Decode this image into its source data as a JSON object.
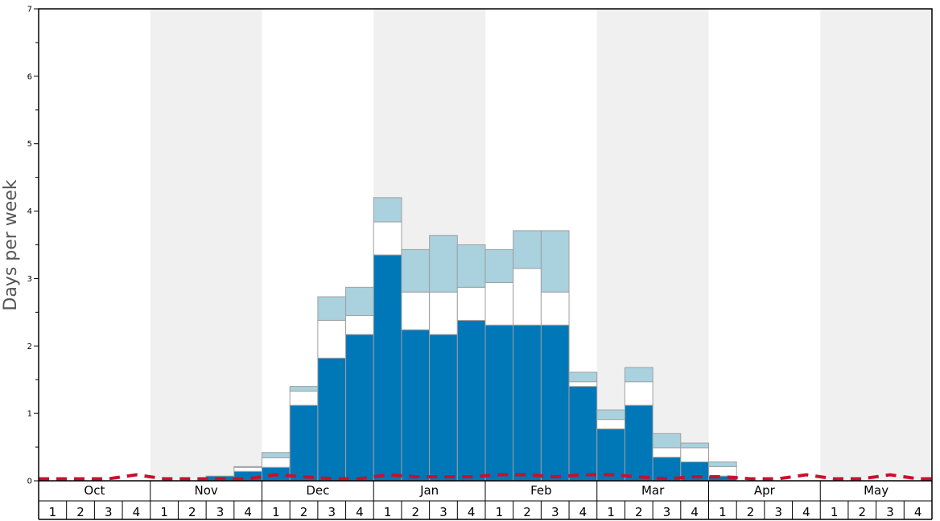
{
  "chart_data": {
    "type": "bar",
    "stacked": true,
    "ylabel": "Days per week",
    "ylim": [
      0,
      7
    ],
    "y_ticks": [
      "0",
      "1",
      "2",
      "3",
      "4",
      "5",
      "6",
      "7"
    ],
    "months": [
      "Oct",
      "Nov",
      "Dec",
      "Jan",
      "Feb",
      "Mar",
      "Apr",
      "May"
    ],
    "week_labels": [
      "1",
      "2",
      "3",
      "4"
    ],
    "weeks_per_month": 4,
    "series": [
      {
        "color": "#0077b6",
        "values": [
          0,
          0,
          0,
          0,
          0,
          0,
          0.07,
          0.14,
          0.2,
          1.12,
          1.82,
          2.17,
          3.35,
          2.24,
          2.17,
          2.38,
          2.31,
          2.31,
          2.31,
          1.4,
          0.77,
          1.12,
          0.35,
          0.28,
          0.07,
          0,
          0,
          0,
          0,
          0,
          0,
          0
        ]
      },
      {
        "color": "#ffffff",
        "values": [
          0,
          0,
          0,
          0,
          0,
          0,
          0,
          0.06,
          0.14,
          0.21,
          0.56,
          0.28,
          0.49,
          0.56,
          0.63,
          0.49,
          0.63,
          0.84,
          0.49,
          0.07,
          0.14,
          0.35,
          0.14,
          0.21,
          0.14,
          0,
          0,
          0,
          0,
          0,
          0,
          0
        ]
      },
      {
        "color": "#a9d1de",
        "values": [
          0,
          0,
          0,
          0,
          0,
          0,
          0,
          0.01,
          0.08,
          0.07,
          0.35,
          0.42,
          0.36,
          0.63,
          0.84,
          0.63,
          0.49,
          0.56,
          0.91,
          0.14,
          0.14,
          0.21,
          0.21,
          0.07,
          0.07,
          0,
          0,
          0,
          0,
          0,
          0,
          0
        ]
      }
    ],
    "reference_line": {
      "color": "#c8102e",
      "style": "dashed",
      "values": [
        0.03,
        0.03,
        0.03,
        0.09,
        0.03,
        0.03,
        0.03,
        0.03,
        0.09,
        0.06,
        0.03,
        0.03,
        0.09,
        0.06,
        0.06,
        0.06,
        0.09,
        0.09,
        0.06,
        0.09,
        0.09,
        0.06,
        0.03,
        0.06,
        0.06,
        0.03,
        0.03,
        0.09,
        0.03,
        0.03,
        0.09,
        0.03
      ]
    },
    "shaded_months": [
      "Nov",
      "Jan",
      "Mar",
      "May"
    ],
    "grid": false
  }
}
